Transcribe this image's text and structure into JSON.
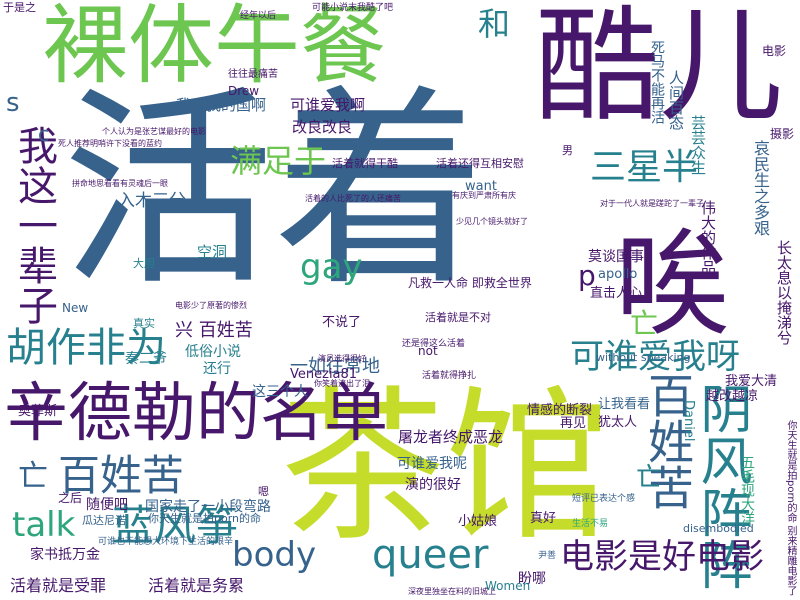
{
  "palette": {
    "purple": "#46176a",
    "blue": "#36628c",
    "teal": "#27808e",
    "green": "#2ea67c",
    "lime": "#6cc64f",
    "yellow": "#c6dc2a"
  },
  "words": [
    {
      "text": "活着"
    },
    {
      "text": "茶馆"
    },
    {
      "text": "酷儿"
    },
    {
      "text": "裸体午餐"
    },
    {
      "text": "唉"
    },
    {
      "text": "辛德勒的名单"
    },
    {
      "text": "百姓苦"
    },
    {
      "text": "阴风阵阵"
    },
    {
      "text": "我这一辈子"
    },
    {
      "text": "胡作非为"
    },
    {
      "text": "可谁爱我呀"
    },
    {
      "text": "蓝风筝"
    },
    {
      "text": "电影是好电影"
    },
    {
      "text": "queer"
    },
    {
      "text": "body"
    },
    {
      "text": "talk"
    },
    {
      "text": "满足于"
    },
    {
      "text": "gay"
    },
    {
      "text": "三星半"
    },
    {
      "text": "百姓苦"
    },
    {
      "text": "和"
    },
    {
      "text": "亡"
    },
    {
      "text": "亡"
    },
    {
      "text": "亡"
    },
    {
      "text": "p"
    },
    {
      "text": "s"
    },
    {
      "text": "c"
    },
    {
      "text": "屠龙者终成恶龙"
    },
    {
      "text": "一如往常地"
    },
    {
      "text": "兴 百姓苦"
    },
    {
      "text": "入木三分"
    },
    {
      "text": "我爱我的国啊"
    },
    {
      "text": "可谁爱我啊"
    },
    {
      "text": "改良改良"
    },
    {
      "text": "空洞"
    },
    {
      "text": "低俗小说"
    },
    {
      "text": "还行"
    },
    {
      "text": "秦二爷"
    },
    {
      "text": "Venezia81"
    },
    {
      "text": "这三个人"
    },
    {
      "text": "可谁爱我呢"
    },
    {
      "text": "演的很好"
    },
    {
      "text": "小姑娘"
    },
    {
      "text": "随便吧"
    },
    {
      "text": "国家走了一小段弯路"
    },
    {
      "text": "家书抵万金"
    },
    {
      "text": "活着就是受罪"
    },
    {
      "text": "活着就是务累"
    },
    {
      "text": "盼哪"
    },
    {
      "text": "真好"
    },
    {
      "text": "Women"
    },
    {
      "text": "情感的断裂"
    },
    {
      "text": "直击人心"
    },
    {
      "text": "莫谈国事"
    },
    {
      "text": "apollo"
    },
    {
      "text": "伟大的作品"
    },
    {
      "text": "哀民生之多艰"
    },
    {
      "text": "长太息以掩涕兮"
    },
    {
      "text": "越改越凉"
    },
    {
      "text": "我爱大清"
    },
    {
      "text": "让我看看"
    },
    {
      "text": "再见"
    },
    {
      "text": "犹太人"
    },
    {
      "text": "Daniel"
    },
    {
      "text": "五毛现大洋"
    },
    {
      "text": "电影"
    },
    {
      "text": "摄影"
    },
    {
      "text": "人间百态"
    },
    {
      "text": "芸芸众生"
    },
    {
      "text": "死马不能再活"
    },
    {
      "text": "凡救一人命 即救全世界"
    },
    {
      "text": "not"
    },
    {
      "text": "不说了"
    },
    {
      "text": "奥菲斯"
    },
    {
      "text": "瓜达尼诺"
    },
    {
      "text": "你天生就是拍porn的命"
    },
    {
      "text": "可谁也不能想大环境下生活的艰辛"
    },
    {
      "text": "活着就是不对"
    },
    {
      "text": "活着就得干酷"
    },
    {
      "text": "活着还得互相安慰"
    },
    {
      "text": "Drew"
    },
    {
      "text": "往往最痛苦"
    },
    {
      "text": "经年以后"
    },
    {
      "text": "可能小说末我酷了吧"
    },
    {
      "text": "于是之"
    },
    {
      "text": "want"
    },
    {
      "text": "without speaking"
    },
    {
      "text": "disembodied"
    },
    {
      "text": "New"
    },
    {
      "text": "大胆"
    },
    {
      "text": "真实"
    },
    {
      "text": "嗯"
    },
    {
      "text": "之后"
    },
    {
      "text": "男"
    },
    {
      "text": "你天生就是拍porn的命 别来精雕电影了"
    },
    {
      "text": "生活不易"
    },
    {
      "text": "短评已表达个感"
    },
    {
      "text": "尹善"
    },
    {
      "text": "活着就得挣扎"
    },
    {
      "text": "深夜里独坐在料的旧城上"
    },
    {
      "text": "还是得这么活着"
    },
    {
      "text": "电影少了原著的惨烈"
    },
    {
      "text": "拼命地思看看有灵魂后一眼"
    },
    {
      "text": "死人推荐明哨许下没看的蓝约"
    },
    {
      "text": "个人认为是张艺谋最好的电影"
    },
    {
      "text": "有庆到严肃所有庆"
    },
    {
      "text": "对于一代人就是蹉跎了一辈子"
    },
    {
      "text": "少见几个镜头就好了"
    },
    {
      "text": "活着的人比死了的人还痛苦"
    },
    {
      "text": "演员选得很好"
    },
    {
      "text": "你笑着流出了泪"
    }
  ]
}
